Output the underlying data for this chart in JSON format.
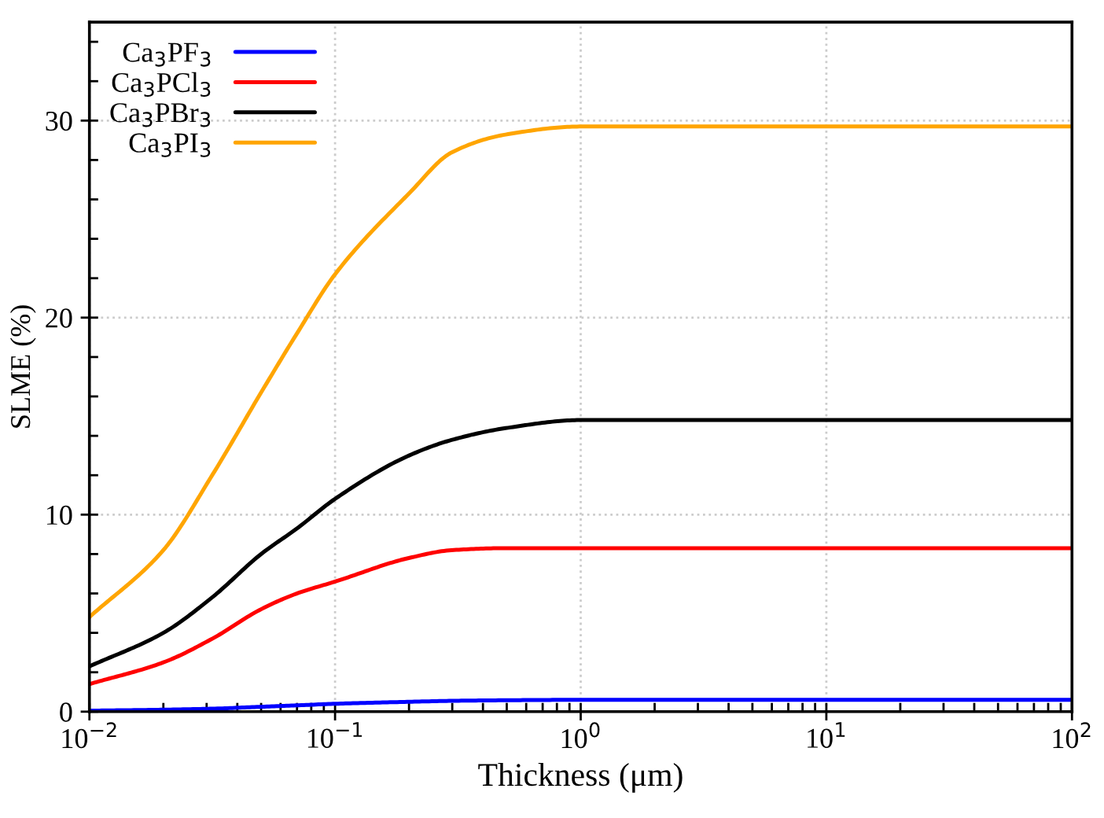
{
  "chart_data": {
    "type": "line",
    "xlabel": "Thickness (μm)",
    "ylabel": "SLME (%)",
    "log": "x",
    "x": [
      0.01,
      0.02,
      0.0316,
      0.05,
      0.07,
      0.1,
      0.2,
      0.3,
      0.5,
      1,
      2,
      10,
      100
    ],
    "series": [
      {
        "name": "Ca$_{3}$PF$_{3}$",
        "color": "#0000ff",
        "values": [
          0.05,
          0.1,
          0.15,
          0.25,
          0.32,
          0.4,
          0.5,
          0.55,
          0.58,
          0.6,
          0.6,
          0.6,
          0.6
        ]
      },
      {
        "name": "Ca$_{3}$PCl$_{3}$",
        "color": "#ff0000",
        "values": [
          1.4,
          2.5,
          3.7,
          5.2,
          6.0,
          6.6,
          7.8,
          8.2,
          8.3,
          8.3,
          8.3,
          8.3,
          8.3
        ]
      },
      {
        "name": "Ca$_{3}$PBr$_{3}$",
        "color": "#000000",
        "values": [
          2.3,
          4.0,
          5.8,
          8.0,
          9.3,
          10.8,
          13.0,
          13.8,
          14.4,
          14.8,
          14.8,
          14.8,
          14.8
        ]
      },
      {
        "name": "Ca$_{3}$PI$_{3}$",
        "color": "#ffa500",
        "values": [
          4.8,
          8.2,
          12.0,
          16.2,
          19.2,
          22.2,
          26.3,
          28.4,
          29.3,
          29.7,
          29.7,
          29.7,
          29.7
        ]
      }
    ],
    "xlim": [
      0.01,
      100
    ],
    "xticks": [
      {
        "value": 0.01,
        "label": "10$^{−2}$"
      },
      {
        "value": 0.1,
        "label": "10$^{−1}$"
      },
      {
        "value": 1,
        "label": "10$^{0}$"
      },
      {
        "value": 10,
        "label": "10$^{1}$"
      },
      {
        "value": 100,
        "label": "10$^{2}$"
      }
    ],
    "ylim": [
      0,
      35
    ],
    "yticks": [
      0,
      10,
      20,
      30
    ],
    "grid": true,
    "legend": "top left",
    "line_style": "solid",
    "marker": "none"
  }
}
